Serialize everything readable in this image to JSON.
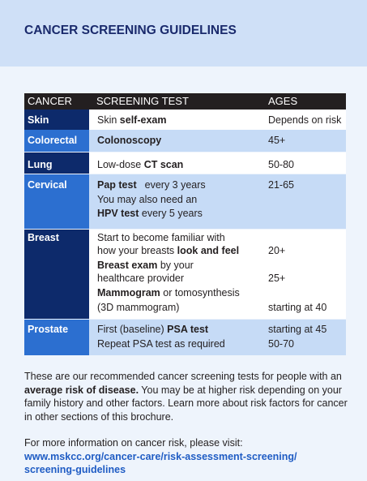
{
  "header": {
    "title": "CANCER SCREENING GUIDELINES"
  },
  "table": {
    "columns": [
      "CANCER",
      "SCREENING TEST",
      "AGES"
    ],
    "rows": [
      {
        "cancer": "Skin",
        "test": [
          [
            "Skin ",
            "self-exam"
          ]
        ],
        "ages": [
          "Depends on risk"
        ]
      },
      {
        "cancer": "Colorectal",
        "test": [
          [
            "Colonoscopy"
          ]
        ],
        "ages": [
          "45+"
        ]
      },
      {
        "cancer": "Lung",
        "test": [
          [
            "Low-dose ",
            "CT scan"
          ]
        ],
        "ages": [
          "50-80"
        ]
      },
      {
        "cancer": "Cervical",
        "test": [
          [
            "Pap test",
            "every 3 years"
          ],
          [
            "You may also need an"
          ],
          [
            "HPV test",
            " every 5 years"
          ]
        ],
        "ages": [
          "21-65"
        ]
      },
      {
        "cancer": "Breast",
        "test": [
          [
            "Start to become familiar with"
          ],
          [
            "how your breasts ",
            "look and feel"
          ],
          [
            "Breast exam",
            " by your"
          ],
          [
            "healthcare provider"
          ],
          [
            "Mammogram",
            " or tomosynthesis"
          ],
          [
            "(3D mammogram)"
          ]
        ],
        "ages": [
          "20+",
          "25+",
          "starting at 40"
        ]
      },
      {
        "cancer": "Prostate",
        "test": [
          [
            "First (baseline) ",
            "PSA test"
          ],
          [
            "Repeat PSA test as required"
          ]
        ],
        "ages": [
          "starting at 45",
          "50-70"
        ]
      }
    ]
  },
  "body": {
    "paragraph": [
      "These are our recommended cancer screening tests for people  with an ",
      "average risk of disease.",
      " You may be at higher risk depending on your family history and other factors. Learn more about risk factors for cancer in other sections of this brochure."
    ],
    "more_info": "For more information on cancer risk, please visit:",
    "link": [
      "www.mskcc.org/cancer-care/risk-assessment-screening/",
      "screening-guidelines"
    ]
  }
}
